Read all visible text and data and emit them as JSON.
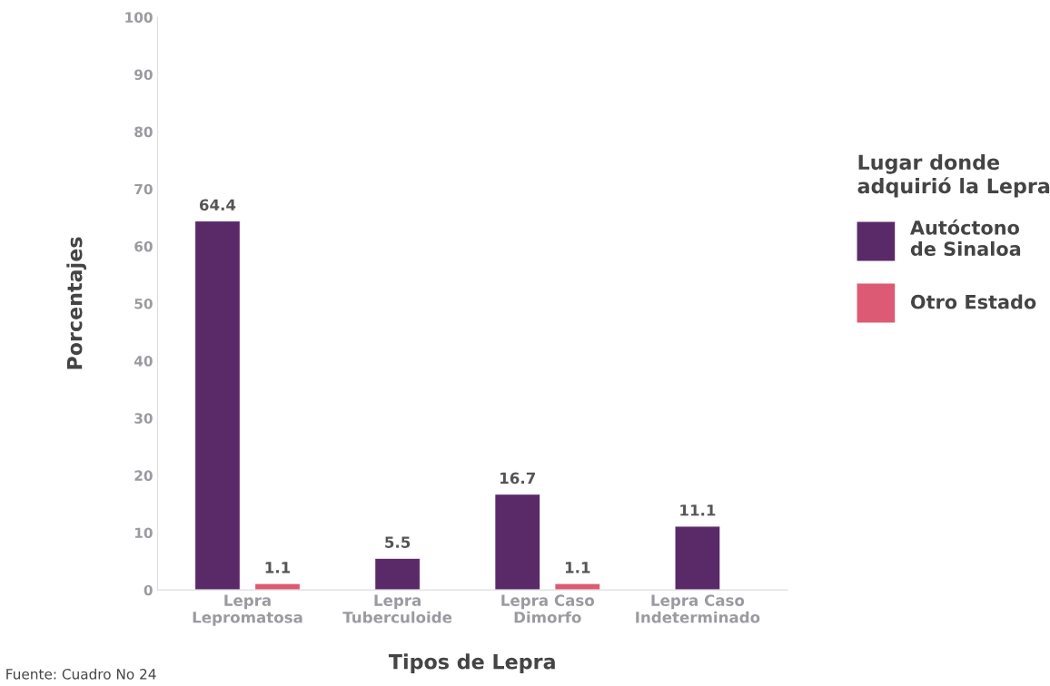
{
  "chart_data": {
    "type": "bar",
    "xlabel": "Tipos de Lepra",
    "ylabel": "Porcentajes",
    "legend_title": "Lugar donde\nadquirió la Lepra",
    "categories": [
      "Lepra\nLepromatosa",
      "Lepra\nTuberculoide",
      "Lepra Caso\nDimorfo",
      "Lepra Caso\nIndeterminado"
    ],
    "series": [
      {
        "name": "Autóctono\nde Sinaloa",
        "color": "#5a2a68",
        "values": [
          64.4,
          5.5,
          16.7,
          11.1
        ]
      },
      {
        "name": "Otro Estado",
        "color": "#dc5a74",
        "values": [
          1.1,
          null,
          1.1,
          null
        ]
      }
    ],
    "ylim": [
      0,
      100
    ],
    "yticks": [
      0,
      10,
      20,
      30,
      40,
      50,
      60,
      70,
      80,
      90,
      100
    ],
    "data_labels": true,
    "grid": false,
    "legend": "right",
    "annotations": [
      "Fuente: Cuadro No 24"
    ]
  }
}
